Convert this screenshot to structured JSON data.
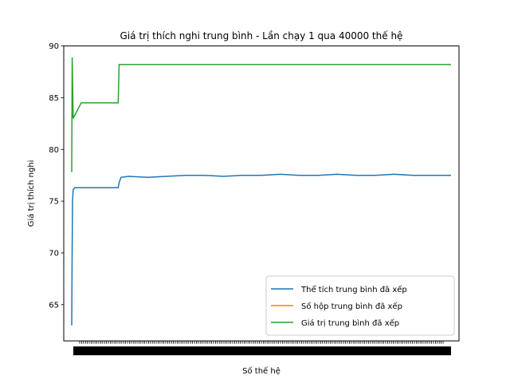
{
  "chart_data": {
    "type": "line",
    "title": "Giá trị thích nghi trung bình - Lần chạy 1 qua 40000 thế hệ",
    "xlabel": "Số thế hệ",
    "ylabel": "Giá trị thích nghi",
    "xlim": [
      0,
      40000
    ],
    "ylim": [
      61.5,
      90
    ],
    "yticks": [
      65,
      70,
      75,
      80,
      85,
      90
    ],
    "x_tick_labels_overlapping": true,
    "grid": false,
    "legend_position": "lower-right",
    "series": [
      {
        "name": "Thể tích trung bình đã xếp",
        "color": "#1f77b4",
        "points": [
          [
            0,
            63.0
          ],
          [
            30,
            68.5
          ],
          [
            80,
            75.0
          ],
          [
            150,
            76.1
          ],
          [
            300,
            76.3
          ],
          [
            1000,
            76.3
          ],
          [
            2000,
            76.3
          ],
          [
            3000,
            76.3
          ],
          [
            4000,
            76.3
          ],
          [
            4900,
            76.3
          ],
          [
            5000,
            76.8
          ],
          [
            5200,
            77.3
          ],
          [
            6000,
            77.4
          ],
          [
            8000,
            77.3
          ],
          [
            10000,
            77.4
          ],
          [
            12000,
            77.5
          ],
          [
            14000,
            77.5
          ],
          [
            16000,
            77.4
          ],
          [
            18000,
            77.5
          ],
          [
            20000,
            77.5
          ],
          [
            22000,
            77.6
          ],
          [
            24000,
            77.5
          ],
          [
            26000,
            77.5
          ],
          [
            28000,
            77.6
          ],
          [
            30000,
            77.5
          ],
          [
            32000,
            77.5
          ],
          [
            34000,
            77.6
          ],
          [
            36000,
            77.5
          ],
          [
            38000,
            77.5
          ],
          [
            40000,
            77.5
          ]
        ]
      },
      {
        "name": "Số hộp trung bình đã xếp",
        "color": "#ff7f0e",
        "points": []
      },
      {
        "name": "Giá trị trung bình đã xếp",
        "color": "#2ca02c",
        "points": [
          [
            0,
            77.8
          ],
          [
            50,
            88.9
          ],
          [
            150,
            83.0
          ],
          [
            1000,
            84.5
          ],
          [
            2000,
            84.5
          ],
          [
            3000,
            84.5
          ],
          [
            4000,
            84.5
          ],
          [
            4900,
            84.5
          ],
          [
            5000,
            88.2
          ],
          [
            8000,
            88.2
          ],
          [
            12000,
            88.2
          ],
          [
            16000,
            88.2
          ],
          [
            20000,
            88.2
          ],
          [
            24000,
            88.2
          ],
          [
            28000,
            88.2
          ],
          [
            32000,
            88.2
          ],
          [
            36000,
            88.2
          ],
          [
            40000,
            88.2
          ]
        ]
      }
    ]
  }
}
